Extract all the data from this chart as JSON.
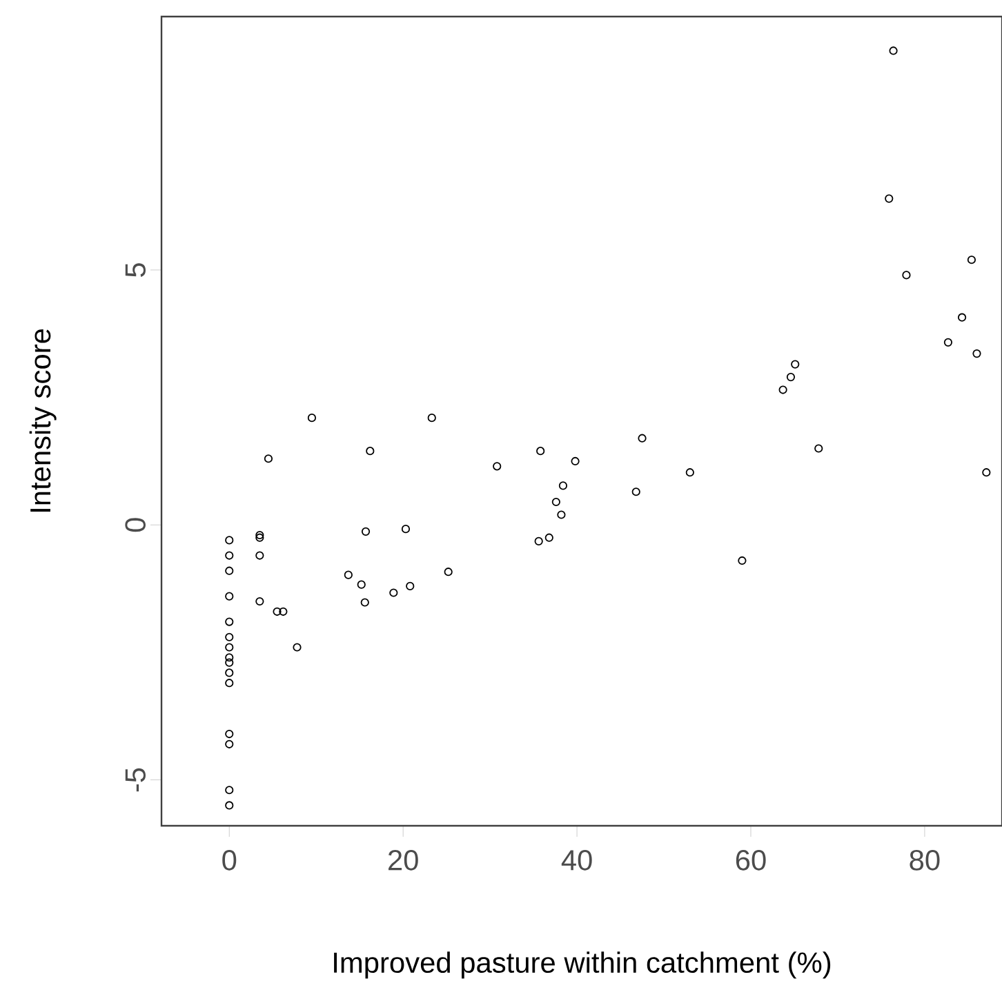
{
  "chart_data": {
    "type": "scatter",
    "xlabel": "Improved pasture within catchment (%)",
    "ylabel": "Intensity score",
    "xlim": [
      -7.8,
      88.9
    ],
    "ylim": [
      -5.9,
      9.97
    ],
    "xticks": [
      0,
      20,
      40,
      60,
      80
    ],
    "yticks": [
      -5,
      0,
      5
    ],
    "marker": "circle",
    "series": [
      {
        "color": "#000000",
        "x": [
          0,
          0,
          0,
          0,
          0,
          0,
          0,
          0,
          0,
          0,
          0,
          0,
          0,
          0,
          0,
          3.5,
          3.5,
          3.5,
          3.5,
          5.5,
          6.2,
          7.8,
          4.5,
          9.5,
          16.2,
          23.3,
          30.8,
          35.8,
          39.8,
          38.4,
          37.6,
          38.2,
          35.6,
          36.8,
          15.7,
          20.3,
          47.5,
          46.8,
          53,
          59,
          25.2,
          20.8,
          18.9,
          13.7,
          15.2,
          15.6,
          63.7,
          64.6,
          65.1,
          76.4,
          75.9,
          85.4,
          77.9,
          84.3,
          82.7,
          86,
          67.8,
          87.1
        ],
        "values": [
          -0.3,
          -0.6,
          -0.9,
          -1.4,
          -1.9,
          -2.2,
          -2.4,
          -2.6,
          -2.7,
          -2.9,
          -3.1,
          -4.1,
          -4.3,
          -5.2,
          -5.5,
          -0.2,
          -0.25,
          -0.6,
          -1.5,
          -1.7,
          -1.7,
          -2.4,
          1.3,
          2.1,
          1.45,
          2.1,
          1.15,
          1.45,
          1.25,
          0.77,
          0.45,
          0.2,
          -0.32,
          -0.25,
          -0.13,
          -0.08,
          1.7,
          0.65,
          1.03,
          -0.7,
          -0.92,
          -1.2,
          -1.33,
          -0.98,
          -1.17,
          -1.52,
          2.65,
          2.9,
          3.15,
          9.3,
          6.4,
          5.2,
          4.9,
          4.07,
          3.58,
          3.36,
          1.5,
          1.03
        ]
      }
    ]
  }
}
